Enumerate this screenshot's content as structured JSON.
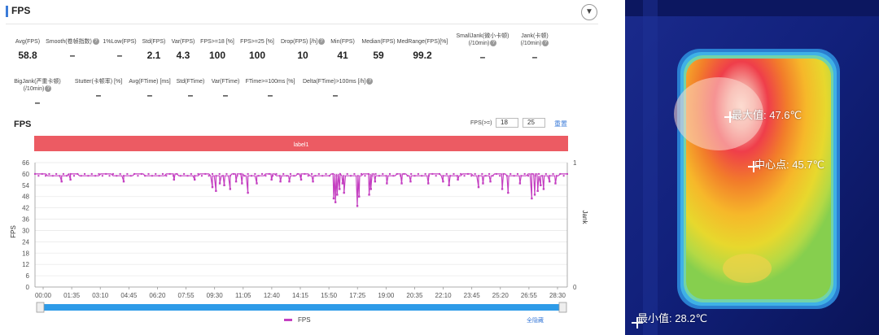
{
  "panel": {
    "title": "FPS",
    "collapse_icon": "▼"
  },
  "stats_row1": [
    {
      "label": "Avg(FPS)",
      "value": "58.8",
      "help": false
    },
    {
      "label": "Smooth(卷帧指数)",
      "value": "–",
      "help": true
    },
    {
      "label": "1%Low(FPS)",
      "value": "–",
      "help": false
    },
    {
      "label": "Std(FPS)",
      "value": "2.1",
      "help": false
    },
    {
      "label": "Var(FPS)",
      "value": "4.3",
      "help": false
    },
    {
      "label": "FPS>=18 [%]",
      "value": "100",
      "help": false
    },
    {
      "label": "FPS>=25 [%]",
      "value": "100",
      "help": false
    },
    {
      "label": "Drop(FPS) [/h]",
      "value": "10",
      "help": true
    },
    {
      "label": "Min(FPS)",
      "value": "41",
      "help": false
    },
    {
      "label": "Median(FPS)",
      "value": "59",
      "help": false
    },
    {
      "label": "MedRange(FPS)[%]",
      "value": "99.2",
      "help": false
    },
    {
      "label": "SmallJank(微小卡顿)",
      "label2": "(/10min)",
      "value": "–",
      "help": true
    },
    {
      "label": "Jank(卡顿)",
      "label2": "(/10min)",
      "value": "–",
      "help": true
    }
  ],
  "stats_row2": [
    {
      "label": "BigJank(严重卡顿)",
      "label2": "(/10min)",
      "value": "–",
      "help": true
    },
    {
      "label": "Stutter(卡顿率) [%]",
      "value": "–",
      "help": false
    },
    {
      "label": "Avg(FTime) [ms]",
      "value": "–",
      "help": false
    },
    {
      "label": "Std(FTime)",
      "value": "–",
      "help": false
    },
    {
      "label": "Var(FTime)",
      "value": "–",
      "help": false
    },
    {
      "label": "FTime>=100ms [%]",
      "value": "–",
      "help": false
    },
    {
      "label": "Delta(FTime)>100ms [/h]",
      "value": "–",
      "help": true
    }
  ],
  "chart_header": {
    "title": "FPS",
    "filter_label": "FPS(>=)",
    "filter_value_1": "18",
    "filter_value_2": "25",
    "reset_label": "重置"
  },
  "chart_data": {
    "type": "line",
    "title": "FPS",
    "band_label": "label1",
    "ylabel": "FPS",
    "y2label": "Jank",
    "ylim": [
      0,
      66
    ],
    "y_ticks": [
      "66",
      "60",
      "54",
      "48",
      "42",
      "36",
      "30",
      "24",
      "18",
      "12",
      "6",
      "0"
    ],
    "y2_ticks": [
      "1",
      "0"
    ],
    "x_ticks": [
      "00:00",
      "01:35",
      "03:10",
      "04:45",
      "06:20",
      "07:55",
      "09:30",
      "11:05",
      "12:40",
      "14:15",
      "15:50",
      "17:25",
      "19:00",
      "20:35",
      "22:10",
      "23:45",
      "25:20",
      "26:55",
      "28:30"
    ],
    "duration_s": 1800,
    "series": [
      {
        "name": "FPS",
        "color": "#c43fc1",
        "baseline": 59,
        "dips": [
          [
            90,
            56
          ],
          [
            120,
            57
          ],
          [
            300,
            56
          ],
          [
            470,
            57
          ],
          [
            540,
            57
          ],
          [
            600,
            53
          ],
          [
            612,
            51
          ],
          [
            625,
            55
          ],
          [
            640,
            54
          ],
          [
            660,
            52
          ],
          [
            680,
            56
          ],
          [
            700,
            55
          ],
          [
            720,
            50
          ],
          [
            750,
            55
          ],
          [
            800,
            57
          ],
          [
            830,
            56
          ],
          [
            860,
            56
          ],
          [
            900,
            57
          ],
          [
            940,
            56
          ],
          [
            1010,
            47
          ],
          [
            1016,
            45
          ],
          [
            1022,
            49
          ],
          [
            1030,
            52
          ],
          [
            1040,
            55
          ],
          [
            1045,
            50
          ],
          [
            1090,
            43
          ],
          [
            1096,
            48
          ],
          [
            1130,
            49
          ],
          [
            1136,
            52
          ],
          [
            1150,
            56
          ],
          [
            1190,
            55
          ],
          [
            1240,
            55
          ],
          [
            1270,
            56
          ],
          [
            1330,
            55
          ],
          [
            1380,
            56
          ],
          [
            1400,
            54
          ],
          [
            1430,
            57
          ],
          [
            1500,
            53
          ],
          [
            1515,
            55
          ],
          [
            1540,
            56
          ],
          [
            1580,
            52
          ],
          [
            1600,
            50
          ],
          [
            1640,
            55
          ],
          [
            1680,
            47
          ],
          [
            1690,
            49
          ],
          [
            1700,
            51
          ],
          [
            1710,
            54
          ],
          [
            1720,
            52
          ],
          [
            1740,
            56
          ],
          [
            1760,
            55
          ]
        ]
      }
    ],
    "legend": [
      "FPS"
    ]
  },
  "footer": {
    "hide_all_label": "全隐藏"
  },
  "thermal": {
    "max_label": "最大值: 47.6℃",
    "center_label": "中心点: 45.7℃",
    "min_label": "最小值: 28.2℃"
  }
}
